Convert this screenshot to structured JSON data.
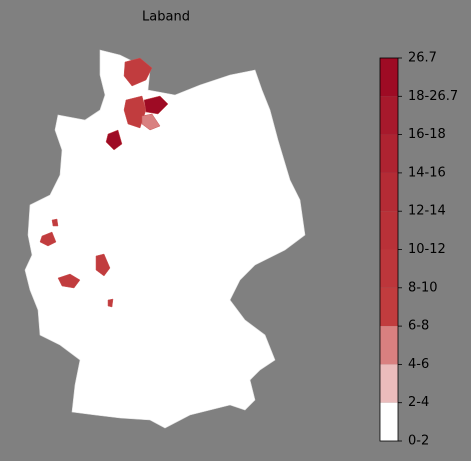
{
  "title": "Laband",
  "colorbar": {
    "labels": [
      "26.7",
      "18-26.7",
      "16-18",
      "14-16",
      "12-14",
      "10-12",
      "8-10",
      "6-8",
      "4-6",
      "2-4",
      "0-2"
    ],
    "colors": [
      "#9e0b24",
      "#a7192c",
      "#ae2331",
      "#b42b35",
      "#b93138",
      "#bd363b",
      "#c13c3e",
      "#d98080",
      "#ebbcbc",
      "#ffffff"
    ]
  }
}
